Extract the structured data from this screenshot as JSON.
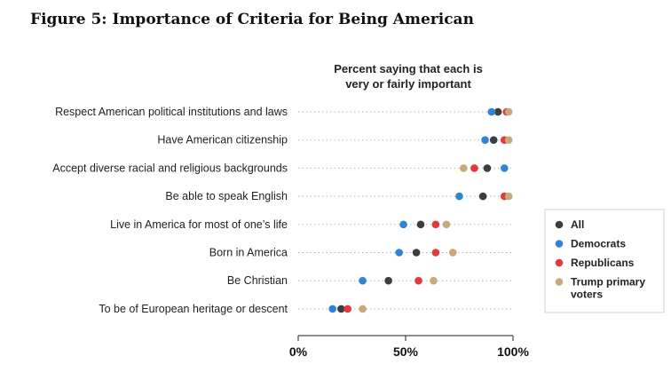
{
  "figure_title": "Figure 5: Importance of Criteria for Being American",
  "chart_data": {
    "type": "scatter",
    "subtitle": [
      "Percent saying that each is",
      "very or fairly important"
    ],
    "categories": [
      "Respect American political institutions and laws",
      "Have American citizenship",
      "Accept diverse racial and religious backgrounds",
      "Be able to speak English",
      "Live in America for most of one’s life",
      "Born in America",
      "Be Christian",
      "To be of European heritage or descent"
    ],
    "series": [
      {
        "name": "All",
        "color": "#3d3d3d",
        "values": [
          93,
          91,
          88,
          86,
          57,
          55,
          42,
          20
        ]
      },
      {
        "name": "Democrats",
        "color": "#2f86d0",
        "values": [
          90,
          87,
          96,
          75,
          49,
          47,
          30,
          16
        ]
      },
      {
        "name": "Republicans",
        "color": "#e03a3c",
        "values": [
          97,
          96,
          82,
          96,
          64,
          64,
          56,
          23
        ]
      },
      {
        "name": "Trump primary voters",
        "color": "#c9a97a",
        "values": [
          98,
          98,
          77,
          98,
          69,
          72,
          63,
          30
        ]
      }
    ],
    "x_ticks": [
      "0%",
      "50%",
      "100%"
    ],
    "xlim": [
      0,
      100
    ],
    "grid": "dotted row guides",
    "legend_position": "right"
  }
}
